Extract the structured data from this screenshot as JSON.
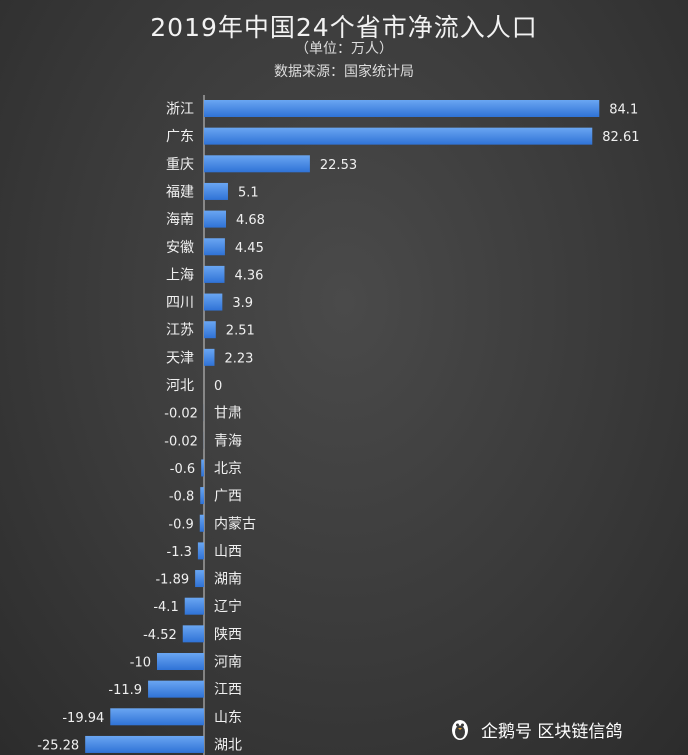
{
  "header": {
    "title": "2019年中国24个省市净流入人口",
    "unit": "（单位：万人）",
    "source": "数据来源：国家统计局"
  },
  "watermark": {
    "text": "企鹅号 区块链信鸽",
    "icon": "penguin-icon"
  },
  "colors": {
    "bar": "#2f72d6",
    "bar_highlight": "#6aa6f2",
    "axis": "#cfcfcf",
    "text": "#f0f0f0"
  },
  "chart_data": {
    "type": "bar",
    "orientation": "horizontal",
    "categories": [
      "浙江",
      "广东",
      "重庆",
      "福建",
      "海南",
      "安徽",
      "上海",
      "四川",
      "江苏",
      "天津",
      "河北",
      "甘肃",
      "青海",
      "北京",
      "广西",
      "内蒙古",
      "山西",
      "湖南",
      "辽宁",
      "陕西",
      "河南",
      "江西",
      "山东",
      "湖北"
    ],
    "values": [
      84.1,
      82.61,
      22.53,
      5.1,
      4.68,
      4.45,
      4.36,
      3.9,
      2.51,
      2.23,
      0,
      -0.02,
      -0.02,
      -0.6,
      -0.8,
      -0.9,
      -1.3,
      -1.89,
      -4.1,
      -4.52,
      -10,
      -11.9,
      -19.94,
      -25.28
    ],
    "value_labels": [
      "84.1",
      "82.61",
      "22.53",
      "5.1",
      "4.68",
      "4.45",
      "4.36",
      "3.9",
      "2.51",
      "2.23",
      "0",
      "-0.02",
      "-0.02",
      "-0.6",
      "-0.8",
      "-0.9",
      "-1.3",
      "-1.89",
      "-4.1",
      "-4.52",
      "-10",
      "-11.9",
      "-19.94",
      "-25.28"
    ],
    "title": "2019年中国24个省市净流入人口",
    "xlabel": "",
    "ylabel": "",
    "xlim": [
      -26.5,
      87
    ],
    "grid": false,
    "legend": "none"
  }
}
